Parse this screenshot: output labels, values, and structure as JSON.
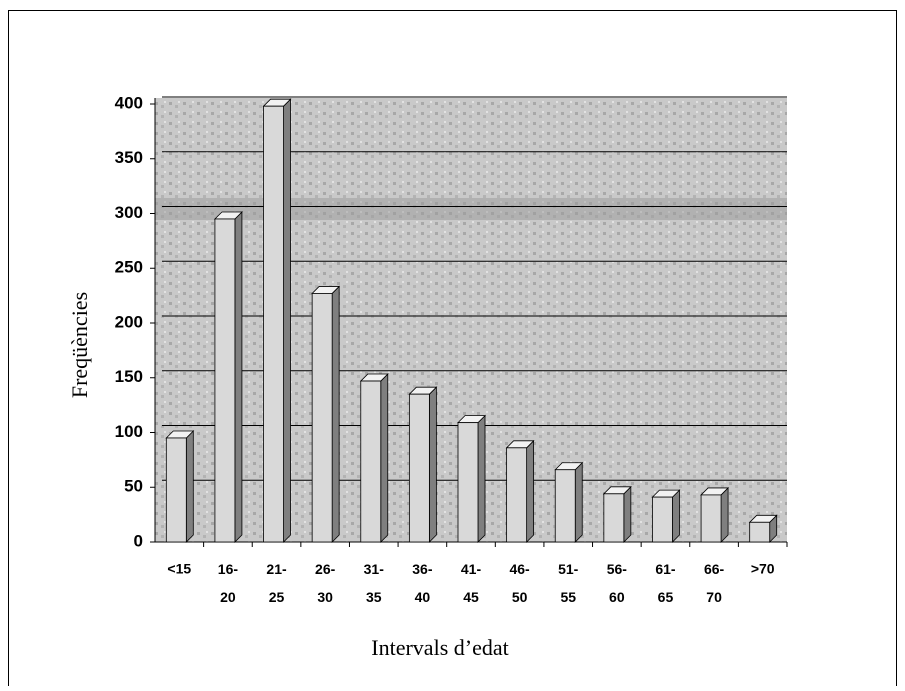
{
  "chart_data": {
    "type": "bar3d",
    "x_label": "Intervals d’edat",
    "y_label": "Freqüències",
    "categories": [
      "<15",
      "16- 20",
      "21- 25",
      "26- 30",
      "31- 35",
      "36- 40",
      "41- 45",
      "46- 50",
      "51- 55",
      "56- 60",
      "61- 65",
      "66- 70",
      ">70"
    ],
    "values": [
      95,
      295,
      398,
      227,
      147,
      135,
      109,
      86,
      66,
      44,
      41,
      43,
      18
    ],
    "color": "#d9d9d9",
    "ylim": [
      0,
      400
    ],
    "yticks": [
      0,
      50,
      100,
      150,
      200,
      250,
      300,
      350,
      400
    ],
    "grid": true
  }
}
